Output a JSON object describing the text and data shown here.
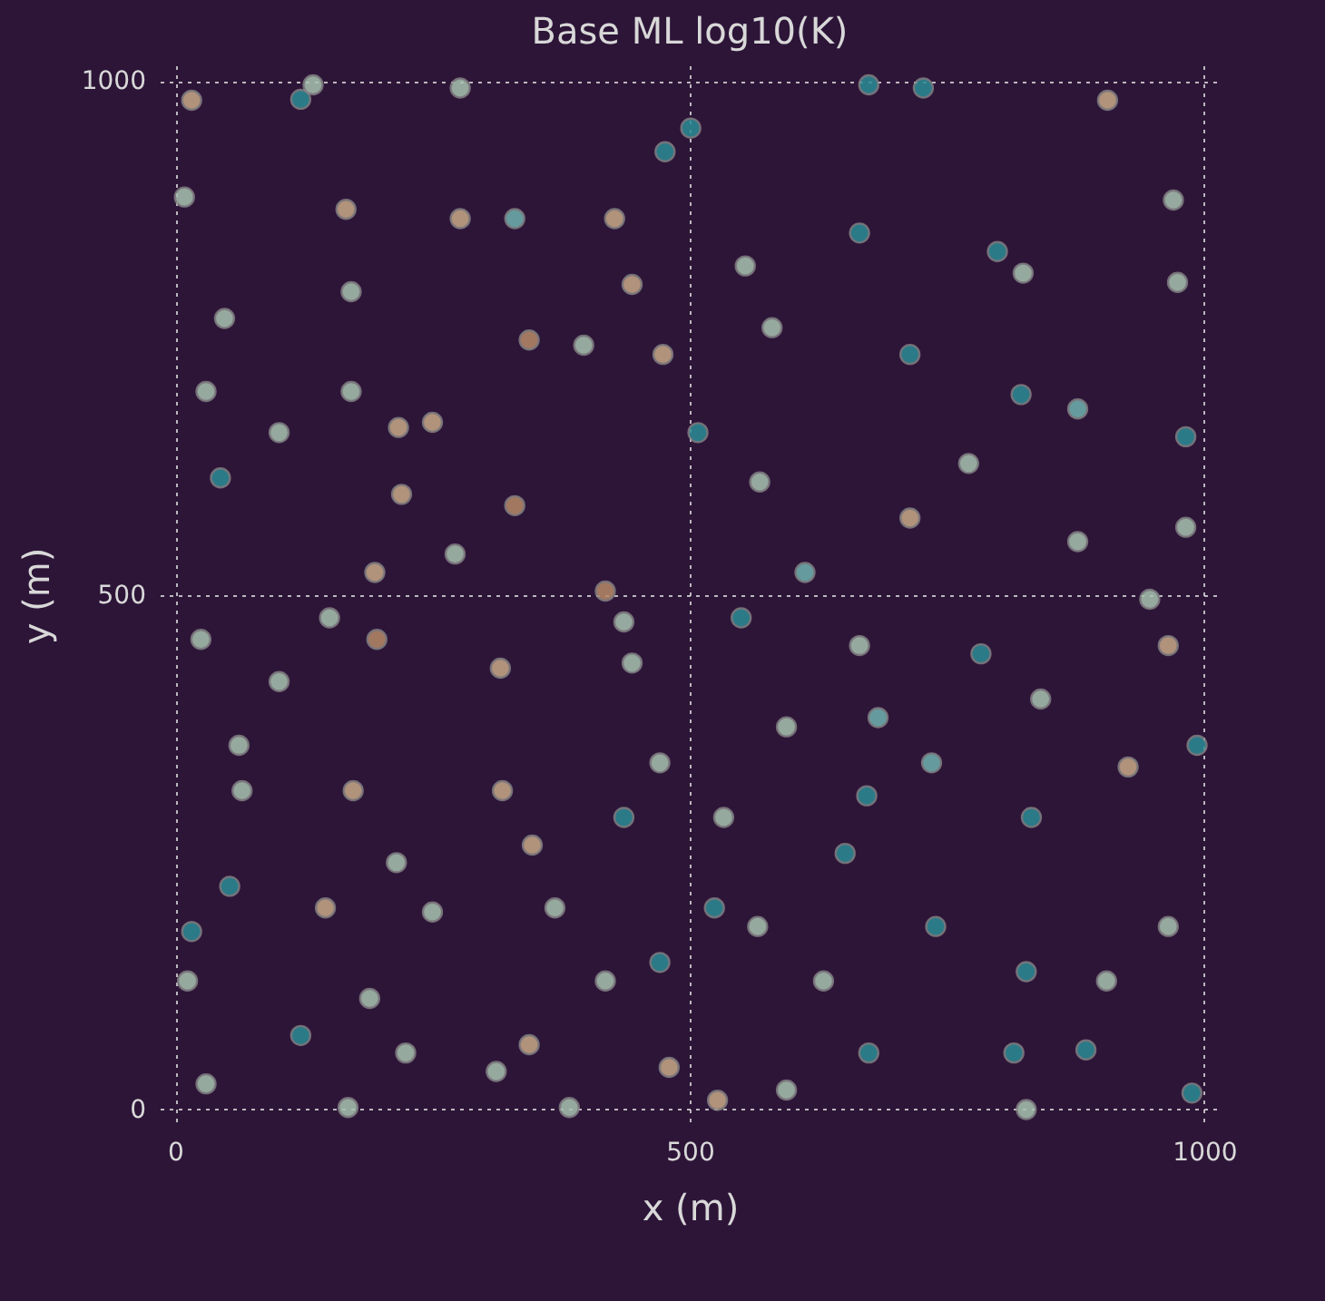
{
  "chart_data": {
    "type": "scatter",
    "title": "Base ML log10(K)",
    "xlabel": "x (m)",
    "ylabel": "y (m)",
    "xlim": [
      -15,
      1015
    ],
    "ylim": [
      -15,
      1015
    ],
    "xticks": [
      0,
      500,
      1000
    ],
    "yticks": [
      0,
      500,
      1000
    ],
    "grid": true,
    "marker": "circle",
    "x": [
      16,
      122,
      134,
      277,
      501,
      476,
      674,
      727,
      906,
      970,
      9,
      166,
      277,
      330,
      427,
      665,
      799,
      974,
      48,
      171,
      344,
      397,
      474,
      580,
      714,
      822,
      982,
      44,
      101,
      220,
      330,
      272,
      418,
      508,
      568,
      714,
      877,
      982,
      25,
      196,
      316,
      436,
      550,
      665,
      783,
      965,
      65,
      173,
      318,
      436,
      533,
      672,
      832,
      926,
      993,
      16,
      53,
      146,
      250,
      369,
      471,
      566,
      651,
      739,
      827,
      965,
      12,
      122,
      224,
      344,
      480,
      594,
      674,
      815,
      885,
      988,
      30,
      168,
      383,
      527,
      827,
      62,
      101,
      194,
      217,
      150,
      444,
      612,
      771,
      877,
      824,
      554,
      444,
      250,
      171,
      30,
      594,
      735,
      471,
      215,
      347,
      630,
      418,
      524,
      905,
      947,
      841,
      683,
      312,
      189
    ],
    "values": [
      981,
      982,
      996,
      993,
      954,
      931,
      996,
      993,
      981,
      884,
      887,
      875,
      866,
      866,
      866,
      852,
      834,
      804,
      769,
      795,
      748,
      743,
      734,
      760,
      734,
      695,
      654,
      614,
      658,
      598,
      587,
      540,
      504,
      658,
      610,
      575,
      552,
      566,
      457,
      457,
      429,
      474,
      478,
      451,
      443,
      451,
      310,
      310,
      310,
      284,
      284,
      305,
      284,
      333,
      354,
      173,
      217,
      196,
      192,
      196,
      143,
      178,
      249,
      178,
      134,
      178,
      125,
      72,
      55,
      63,
      41,
      19,
      55,
      55,
      58,
      16,
      25,
      2,
      2,
      9,
      0,
      354,
      416,
      522,
      663,
      478,
      434,
      522,
      628,
      681,
      813,
      820,
      802,
      668,
      698,
      698,
      372,
      337,
      337,
      240,
      257,
      125,
      125,
      196,
      125,
      496,
      399,
      381,
      37,
      108
    ],
    "colors": [
      "#c9a886",
      "#2b8c96",
      "#a9c3b2",
      "#a9c3b2",
      "#2b8c96",
      "#2b8c96",
      "#2b8c96",
      "#2b8c96",
      "#c9a886",
      "#a9c3b2",
      "#a9c3b2",
      "#c9a886",
      "#c9a886",
      "#6fb3b0",
      "#c9a886",
      "#2b8c96",
      "#2b8c96",
      "#a9c3b2",
      "#a9c3b2",
      "#a9c3b2",
      "#b88a68",
      "#a9c3b2",
      "#c9a886",
      "#a9c3b2",
      "#2b8c96",
      "#2b8c96",
      "#2b8c96",
      "#2b8c96",
      "#a9c3b2",
      "#c9a886",
      "#b88a68",
      "#a9c3b2",
      "#b88a68",
      "#2b8c96",
      "#a9c3b2",
      "#c9a886",
      "#a9c3b2",
      "#a9c3b2",
      "#a9c3b2",
      "#b88a68",
      "#c9a886",
      "#a9c3b2",
      "#2b8c96",
      "#a9c3b2",
      "#2b8c96",
      "#c9a886",
      "#a9c3b2",
      "#c9a886",
      "#c9a886",
      "#2b8c96",
      "#a9c3b2",
      "#2b8c96",
      "#2b8c96",
      "#c9a886",
      "#2b8c96",
      "#2b8c96",
      "#2b8c96",
      "#c9a886",
      "#a9c3b2",
      "#a9c3b2",
      "#2b8c96",
      "#a9c3b2",
      "#2b8c96",
      "#2b8c96",
      "#2b8c96",
      "#a9c3b2",
      "#a9c3b2",
      "#2b8c96",
      "#a9c3b2",
      "#c9a886",
      "#c9a886",
      "#a9c3b2",
      "#2b8c96",
      "#2b8c96",
      "#2b8c96",
      "#2b8c96",
      "#a9c3b2",
      "#a9c3b2",
      "#a9c3b2",
      "#c9a886",
      "#a9c3b2",
      "#a9c3b2",
      "#a9c3b2",
      "#c9a886",
      "#c9a886",
      "#a9c3b2",
      "#a9c3b2",
      "#6fb3b0",
      "#a9c3b2",
      "#6fb3b0",
      "#a9c3b2",
      "#a9c3b2",
      "#c9a886",
      "#c9a886",
      "#a9c3b2",
      "#a9c3b2",
      "#a9c3b2",
      "#6fb3b0",
      "#a9c3b2",
      "#a9c3b2",
      "#c9a886",
      "#a9c3b2",
      "#a9c3b2",
      "#2b8c96",
      "#a9c3b2",
      "#a9c3b2",
      "#a9c3b2",
      "#6fb3b0",
      "#a9c3b2",
      "#a9c3b2"
    ]
  }
}
